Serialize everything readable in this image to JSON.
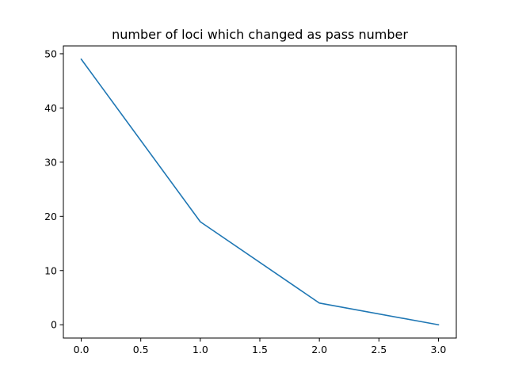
{
  "chart_data": {
    "type": "line",
    "title": "number of loci which changed as pass number",
    "xlabel": "",
    "ylabel": "",
    "xlim": [
      -0.15,
      3.15
    ],
    "ylim": [
      -2.45,
      51.45
    ],
    "grid": false,
    "x_ticks": [
      0.0,
      0.5,
      1.0,
      1.5,
      2.0,
      2.5,
      3.0
    ],
    "x_tick_labels": [
      "0.0",
      "0.5",
      "1.0",
      "1.5",
      "2.0",
      "2.5",
      "3.0"
    ],
    "y_ticks": [
      0,
      10,
      20,
      30,
      40,
      50
    ],
    "y_tick_labels": [
      "0",
      "10",
      "20",
      "30",
      "40",
      "50"
    ],
    "series": [
      {
        "color": "#1f77b4",
        "x": [
          0,
          1,
          2,
          3
        ],
        "y": [
          49,
          19,
          4,
          0
        ]
      }
    ]
  }
}
